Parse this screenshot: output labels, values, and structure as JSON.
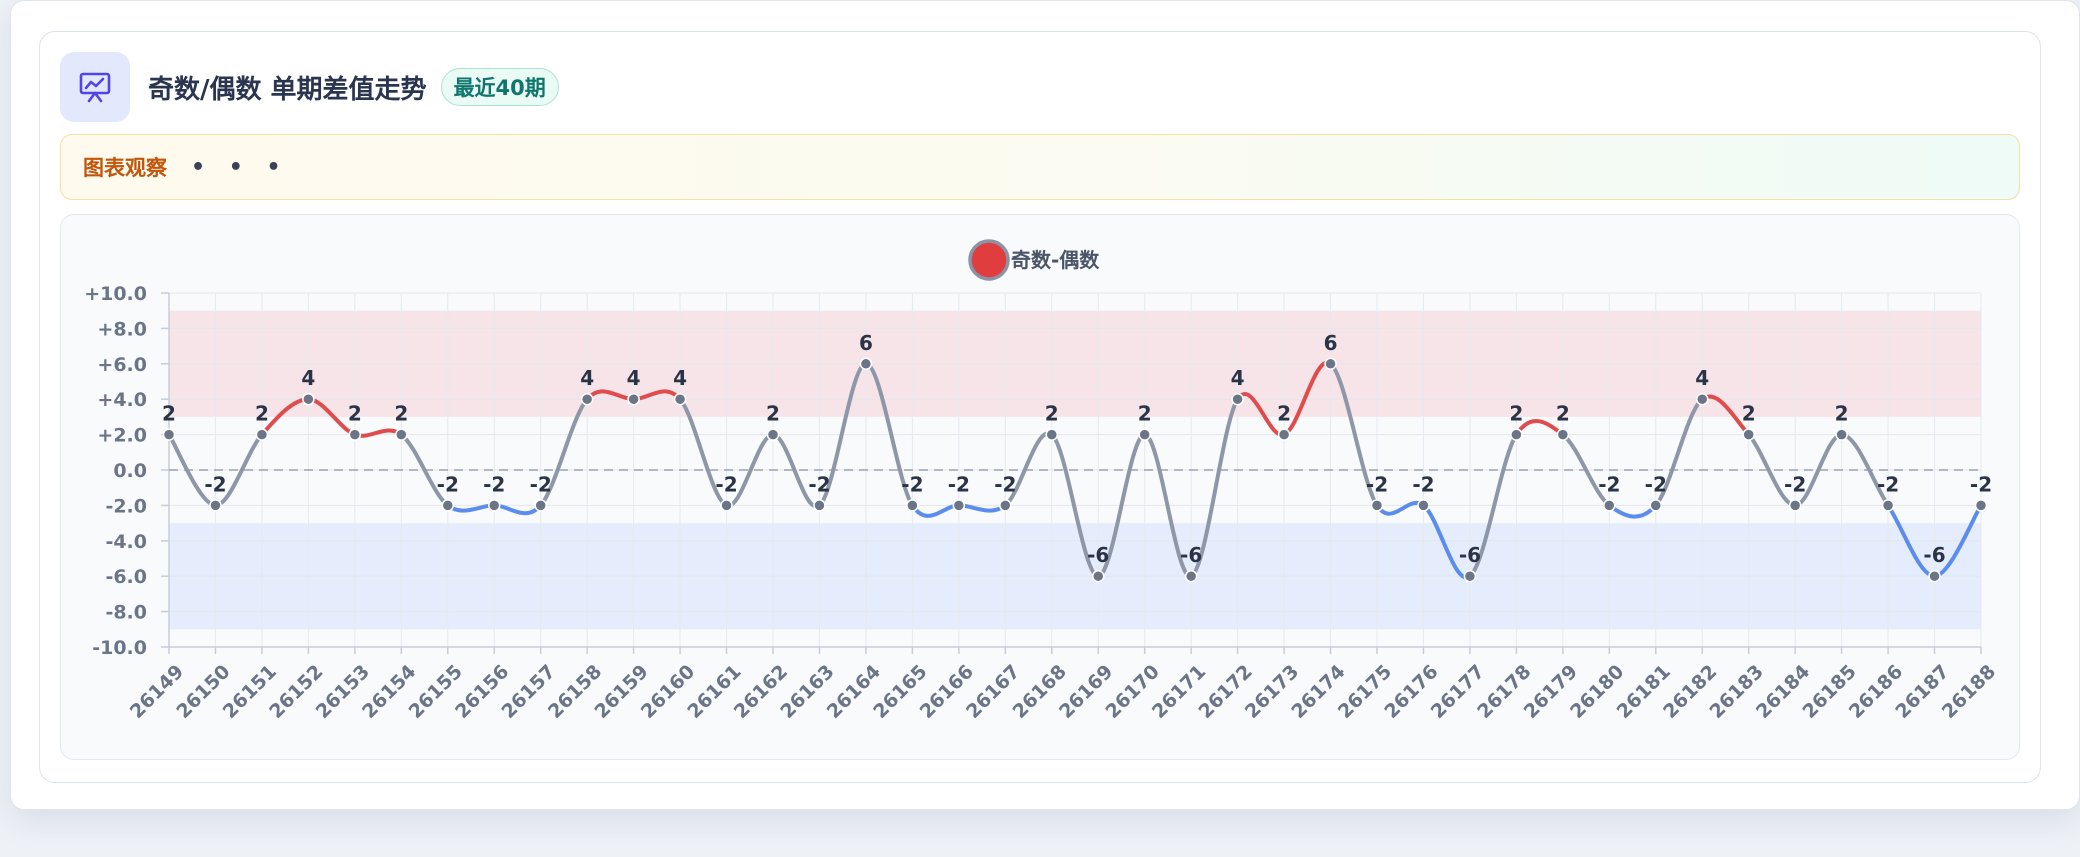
{
  "header": {
    "icon": "presentation-chart-icon",
    "title": "奇数/偶数 单期差值走势",
    "badge": "最近40期"
  },
  "observe": {
    "label": "图表观察",
    "dots": "• • •",
    "icon": "ellipsis-icon"
  },
  "chart_data": {
    "type": "line",
    "title": "",
    "xlabel": "",
    "ylabel": "",
    "legend": {
      "placement": "top-center",
      "label": "奇数-偶数"
    },
    "categories": [
      "26149",
      "26150",
      "26151",
      "26152",
      "26153",
      "26154",
      "26155",
      "26156",
      "26157",
      "26158",
      "26159",
      "26160",
      "26161",
      "26162",
      "26163",
      "26164",
      "26165",
      "26166",
      "26167",
      "26168",
      "26169",
      "26170",
      "26171",
      "26172",
      "26173",
      "26174",
      "26175",
      "26176",
      "26177",
      "26178",
      "26179",
      "26180",
      "26181",
      "26182",
      "26183",
      "26184",
      "26185",
      "26186",
      "26187",
      "26188"
    ],
    "series": [
      {
        "name": "奇数-偶数",
        "values": [
          2,
          -2,
          2,
          4,
          2,
          2,
          -2,
          -2,
          -2,
          4,
          4,
          4,
          -2,
          2,
          -2,
          6,
          -2,
          -2,
          -2,
          2,
          -6,
          2,
          -6,
          4,
          2,
          6,
          -2,
          -2,
          -6,
          2,
          2,
          -2,
          -2,
          4,
          2,
          -2,
          2,
          -2,
          -6,
          -2
        ]
      }
    ],
    "ylim": [
      -10,
      10
    ],
    "yticks": [
      -10,
      -8,
      -6,
      -4,
      -2,
      0,
      2,
      4,
      6,
      8,
      10
    ],
    "ytick_labels": [
      "-10.0",
      "-8.0",
      "-6.0",
      "-4.0",
      "-2.0",
      "0.0",
      "+2.0",
      "+4.0",
      "+6.0",
      "+8.0",
      "+10.0"
    ],
    "bands": [
      {
        "from": 3,
        "to": 9,
        "color": "#f7e4e8"
      },
      {
        "from": -9,
        "to": -3,
        "color": "#e5ecfb"
      }
    ],
    "reference_line": 0,
    "grid": true,
    "colors": {
      "high": "#e04b4b",
      "low": "#5b8def",
      "neutral": "#8d97a8",
      "marker_fill": "#6b7587",
      "legend_fill": "#e03e3e",
      "legend_stroke": "#8a94a6",
      "label": "#2b3446",
      "axis_text": "#6b7587"
    }
  }
}
